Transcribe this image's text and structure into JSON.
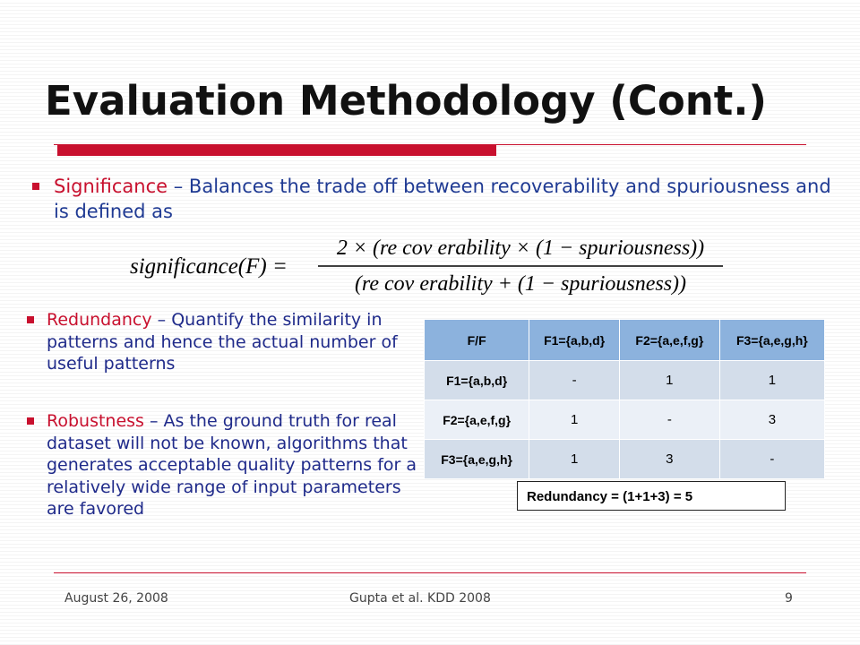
{
  "slide": {
    "title": "Evaluation Methodology (Cont.)",
    "bullets": {
      "significance": {
        "keyword": "Significance",
        "text": " – Balances the trade off between recoverability and spuriousness and is defined as"
      },
      "redundancy": {
        "keyword": "Redundancy",
        "text": " – Quantify the similarity in patterns and hence the actual number of useful patterns"
      },
      "robustness": {
        "keyword": "Robustness",
        "text": " – As the ground truth for real dataset will not be known, algorithms that generates acceptable quality patterns for a relatively wide range of input parameters are favored"
      }
    },
    "formula": {
      "lhs": "significance(F) =",
      "numerator": "2 × (re cov erability × (1 − spuriousness))",
      "denominator": "(re cov erability + (1 − spuriousness))"
    },
    "table": {
      "headers": [
        "F/F",
        "F1={a,b,d}",
        "F2={a,e,f,g}",
        "F3={a,e,g,h}"
      ],
      "rows": [
        [
          "F1={a,b,d}",
          "-",
          "1",
          "1"
        ],
        [
          "F2={a,e,f,g}",
          "1",
          "-",
          "3"
        ],
        [
          "F3={a,e,g,h}",
          "1",
          "3",
          "-"
        ]
      ]
    },
    "redundancy_result": "Redundancy = (1+1+3) = 5",
    "footer": {
      "date": "August 26, 2008",
      "center": "Gupta et al. KDD 2008",
      "page": "9"
    },
    "colors": {
      "accent_red": "#c8102e",
      "text_blue": "#1f3a93",
      "table_header": "#8cb2dd",
      "table_row_a": "#d3ddea",
      "table_row_b": "#ebf0f7"
    }
  }
}
